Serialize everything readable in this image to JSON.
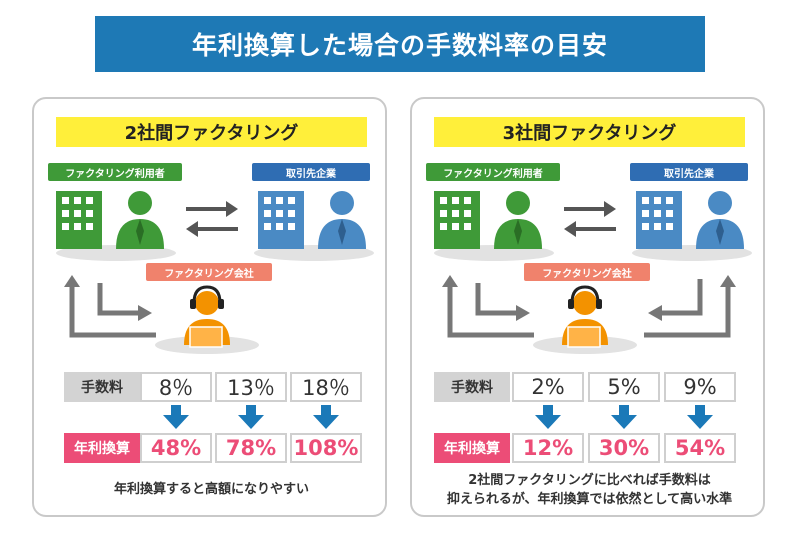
{
  "banner": {
    "title": "年利換算した場合の手数料率の目安"
  },
  "panels": [
    {
      "title": "2社間ファクタリング",
      "user_tag": "ファクタリング利用者",
      "client_tag": "取引先企業",
      "factor_tag": "ファクタリング会社",
      "fee_label": "手数料",
      "fees": [
        "8％",
        "13％",
        "18％"
      ],
      "annual_label": "年利換算",
      "annual": [
        "48%",
        "78%",
        "108%"
      ],
      "note_lines": [
        "年利換算すると高額になりやすい"
      ]
    },
    {
      "title": "3社間ファクタリング",
      "user_tag": "ファクタリング利用者",
      "client_tag": "取引先企業",
      "factor_tag": "ファクタリング会社",
      "fee_label": "手数料",
      "fees": [
        "2%",
        "5%",
        "9%"
      ],
      "annual_label": "年利換算",
      "annual": [
        "12%",
        "30%",
        "54%"
      ],
      "note_lines": [
        "2社間ファクタリングに比べれば手数料は",
        "抑えられるが、年利換算では依然として高い水準"
      ]
    }
  ],
  "colors": {
    "banner": "#1e79b5",
    "title_band": "#ffef3a",
    "green": "#3f9a38",
    "blue": "#2f6db3",
    "orange": "#f0826c",
    "pink": "#ec4d77",
    "arrow_blue": "#1b79b8"
  },
  "icons": [
    "building-icon",
    "person-icon",
    "operator-icon",
    "exchange-arrows-icon",
    "flow-arrow-icon",
    "down-arrow-icon"
  ]
}
